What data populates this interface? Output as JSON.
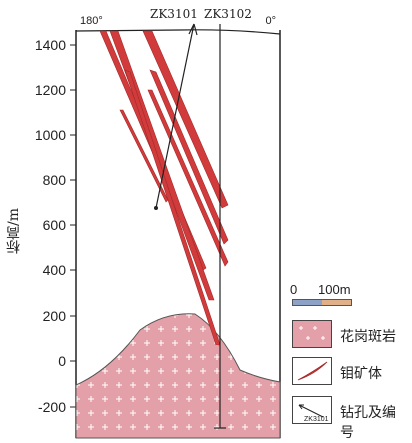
{
  "diagram": {
    "y_axis": {
      "label": "标高/m",
      "ticks": [
        "1400",
        "1200",
        "1000",
        "800",
        "600",
        "400",
        "200",
        "0",
        "-200"
      ]
    },
    "azimuth_left": "180°",
    "azimuth_right": "0°",
    "drillholes": [
      {
        "name": "ZK3101"
      },
      {
        "name": "ZK3102"
      }
    ],
    "legend": {
      "scale_zero": "0",
      "scale_length": "100m",
      "granite_porphyry": "花岗斑岩",
      "molybdenum_orebody": "钼矿体",
      "drillhole": "钻孔及编号",
      "drillhole_sample": "ZK3101"
    },
    "colors": {
      "granite": "#e3a0a8",
      "granite_cross": "#ffffff",
      "orebody": "#d23b3b",
      "frame": "#222222"
    }
  }
}
